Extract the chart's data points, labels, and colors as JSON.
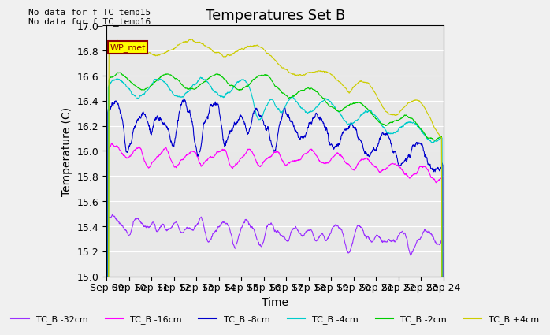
{
  "title": "Temperatures Set B",
  "xlabel": "Time",
  "ylabel": "Temperature (C)",
  "ylim": [
    15.0,
    17.0
  ],
  "yticks": [
    15.0,
    15.2,
    15.4,
    15.6,
    15.8,
    16.0,
    16.2,
    16.4,
    16.6,
    16.8,
    17.0
  ],
  "start_date": "2000-09-09",
  "end_date": "2000-09-24",
  "annotation_text": "No data for f_TC_temp15\nNo data for f_TC_temp16",
  "wp_met_label": "WP_met",
  "background_color": "#e8e8e8",
  "series": [
    {
      "label": "TC_B -32cm",
      "color": "#9b30ff"
    },
    {
      "label": "TC_B -16cm",
      "color": "#ff00ff"
    },
    {
      "label": "TC_B -8cm",
      "color": "#0000cc"
    },
    {
      "label": "TC_B -4cm",
      "color": "#00cccc"
    },
    {
      "label": "TC_B -2cm",
      "color": "#00cc00"
    },
    {
      "label": "TC_B +4cm",
      "color": "#cccc00"
    }
  ],
  "legend_ncol": 6,
  "title_fontsize": 13,
  "axis_fontsize": 10,
  "tick_fontsize": 9
}
